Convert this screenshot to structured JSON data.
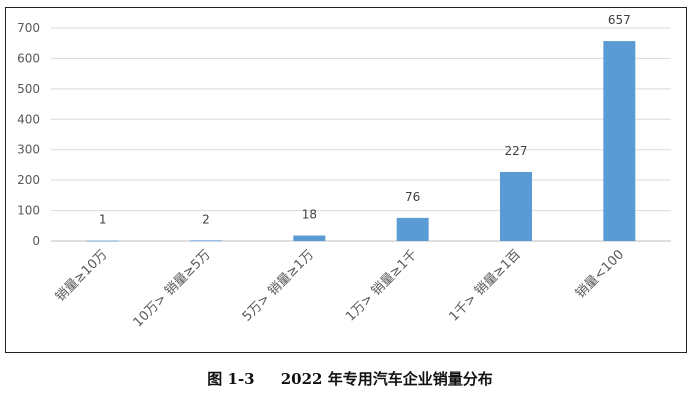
{
  "chart_data": {
    "type": "bar",
    "categories": [
      "销量≥10万",
      "10万> 销量≥5万",
      "5万> 销量≥1万",
      "1万> 销量≥1千",
      "1千> 销量≥1百",
      "销量<100"
    ],
    "values": [
      1,
      2,
      18,
      76,
      227,
      657
    ],
    "data_labels": [
      "1",
      "2",
      "18",
      "76",
      "227",
      "657"
    ],
    "ylim": [
      0,
      700
    ],
    "yticks": [
      0,
      100,
      200,
      300,
      400,
      500,
      600,
      700
    ],
    "grid": true,
    "legend": "none",
    "bar_color": "#5b9bd5",
    "title": "",
    "xlabel": "",
    "ylabel": ""
  },
  "caption": {
    "figure_number": "图 1-3",
    "title": "2022 年专用汽车企业销量分布"
  }
}
